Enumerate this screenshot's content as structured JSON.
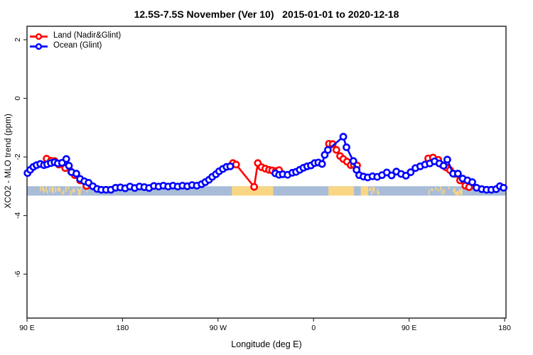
{
  "legend": [
    {
      "label": "Land (Nadir&Glint)",
      "color": "#ff0000"
    },
    {
      "label": "Ocean (Glint)",
      "color": "#0000ff"
    }
  ],
  "chart_data": {
    "type": "line",
    "title": "12.5S-7.5S November (Ver 10)   2015-01-01 to 2020-12-18",
    "xlabel": "Longitude (deg E)",
    "ylabel": "XCO2 - MLO trend (ppm)",
    "xlim": [
      90,
      541.3
    ],
    "ylim": [
      -7.5,
      2.46
    ],
    "grid": false,
    "legend_position": "top-left",
    "x_ticks": [
      {
        "value": 90,
        "label": "90 E"
      },
      {
        "value": 180,
        "label": "180"
      },
      {
        "value": 270,
        "label": "90 W"
      },
      {
        "value": 360,
        "label": "0"
      },
      {
        "value": 450,
        "label": "90 E"
      },
      {
        "value": 540,
        "label": "180"
      }
    ],
    "y_ticks": [
      {
        "value": 2,
        "label": "2"
      },
      {
        "value": 0,
        "label": "0"
      },
      {
        "value": -2,
        "label": "-2"
      },
      {
        "value": -4,
        "label": "-4"
      },
      {
        "value": -6,
        "label": "-6"
      }
    ],
    "map_band": {
      "y_top": -3.0,
      "y_bottom": -3.32,
      "ocean_color": "#a8bcd8",
      "land_color": "#f9d684",
      "land_patches": [
        {
          "from": 102,
          "to": 146,
          "style": "speckle"
        },
        {
          "from": 283,
          "to": 322,
          "style": "solid"
        },
        {
          "from": 374,
          "to": 398,
          "style": "solid"
        },
        {
          "from": 404.5,
          "to": 411.5,
          "style": "solid"
        },
        {
          "from": 412,
          "to": 424,
          "style": "speckle"
        },
        {
          "from": 466,
          "to": 500,
          "style": "speckle"
        }
      ]
    },
    "series": [
      {
        "name": "Land (Nadir&Glint)",
        "color": "#ff0000",
        "segments": [
          [
            [
              108.5,
              -2.06
            ],
            [
              112.5,
              -2.13
            ],
            [
              116,
              -2.14
            ],
            [
              120,
              -2.26
            ],
            [
              126,
              -2.38
            ],
            [
              131.5,
              -2.5
            ],
            [
              135,
              -2.62
            ],
            [
              140,
              -2.8
            ],
            [
              146,
              -2.99
            ]
          ],
          [
            [
              284,
              -2.21
            ],
            [
              287,
              -2.26
            ],
            [
              304,
              -3.02
            ],
            [
              307.5,
              -2.21
            ],
            [
              311,
              -2.35
            ],
            [
              314.5,
              -2.4
            ],
            [
              318,
              -2.44
            ],
            [
              321,
              -2.46
            ],
            [
              324.5,
              -2.48
            ],
            [
              327.5,
              -2.45
            ]
          ],
          [
            [
              374.5,
              -1.55
            ],
            [
              378,
              -1.56
            ],
            [
              381.5,
              -1.76
            ],
            [
              385,
              -1.97
            ],
            [
              388,
              -2.07
            ],
            [
              391.5,
              -2.16
            ],
            [
              395,
              -2.28
            ],
            [
              398,
              -2.27
            ],
            [
              401,
              -2.29
            ]
          ],
          [
            [
              468,
              -2.05
            ],
            [
              472.5,
              -2.02
            ],
            [
              477.5,
              -2.1
            ],
            [
              481.5,
              -2.28
            ],
            [
              485,
              -2.36
            ],
            [
              488.5,
              -2.45
            ],
            [
              493,
              -2.58
            ],
            [
              498,
              -2.8
            ],
            [
              503,
              -2.98
            ],
            [
              506.5,
              -3.03
            ]
          ]
        ]
      },
      {
        "name": "Ocean (Glint)",
        "color": "#0000ff",
        "segments": [
          [
            [
              90.5,
              -2.55
            ],
            [
              93,
              -2.44
            ],
            [
              96,
              -2.34
            ],
            [
              99,
              -2.28
            ],
            [
              102.5,
              -2.24
            ],
            [
              106,
              -2.28
            ],
            [
              109,
              -2.25
            ],
            [
              112.5,
              -2.21
            ],
            [
              116,
              -2.18
            ],
            [
              119,
              -2.22
            ],
            [
              123,
              -2.2
            ],
            [
              127,
              -2.07
            ],
            [
              129.5,
              -2.3
            ],
            [
              132,
              -2.52
            ],
            [
              136.5,
              -2.57
            ],
            [
              140,
              -2.75
            ],
            [
              144,
              -2.83
            ],
            [
              148,
              -2.88
            ],
            [
              152,
              -3.0
            ],
            [
              156,
              -3.09
            ],
            [
              160,
              -3.12
            ],
            [
              164.5,
              -3.12
            ],
            [
              169,
              -3.12
            ],
            [
              173.5,
              -3.05
            ],
            [
              178,
              -3.04
            ],
            [
              182.5,
              -3.07
            ],
            [
              187,
              -3.01
            ],
            [
              191.5,
              -3.06
            ],
            [
              196,
              -3.01
            ],
            [
              200.5,
              -3.03
            ],
            [
              205,
              -3.06
            ],
            [
              209.5,
              -2.99
            ],
            [
              214,
              -3.01
            ],
            [
              218.5,
              -2.98
            ],
            [
              223,
              -3.01
            ],
            [
              227.5,
              -2.98
            ],
            [
              232,
              -3.01
            ],
            [
              236.5,
              -2.98
            ],
            [
              241,
              -3.0
            ],
            [
              245.5,
              -2.96
            ],
            [
              250,
              -2.98
            ],
            [
              254.5,
              -2.93
            ],
            [
              258,
              -2.86
            ],
            [
              261.5,
              -2.78
            ],
            [
              264.5,
              -2.68
            ],
            [
              268,
              -2.59
            ],
            [
              271,
              -2.49
            ],
            [
              274.5,
              -2.41
            ],
            [
              278,
              -2.34
            ],
            [
              281.5,
              -2.32
            ]
          ],
          [
            [
              324,
              -2.56
            ],
            [
              327.5,
              -2.61
            ],
            [
              331,
              -2.59
            ],
            [
              335.5,
              -2.61
            ],
            [
              340,
              -2.54
            ],
            [
              343.5,
              -2.51
            ],
            [
              347,
              -2.44
            ],
            [
              350.5,
              -2.37
            ],
            [
              354,
              -2.32
            ],
            [
              357.5,
              -2.29
            ],
            [
              361,
              -2.21
            ],
            [
              364.5,
              -2.19
            ],
            [
              368,
              -2.24
            ],
            [
              370.5,
              -1.93
            ],
            [
              373.5,
              -1.76
            ],
            [
              388,
              -1.31
            ],
            [
              391,
              -1.67
            ],
            [
              397.5,
              -2.14
            ],
            [
              400.5,
              -2.44
            ],
            [
              403,
              -2.62
            ],
            [
              407,
              -2.67
            ],
            [
              411,
              -2.7
            ],
            [
              415.5,
              -2.66
            ],
            [
              420,
              -2.68
            ],
            [
              424.5,
              -2.62
            ],
            [
              429,
              -2.53
            ],
            [
              433.5,
              -2.63
            ],
            [
              438,
              -2.5
            ],
            [
              442.5,
              -2.58
            ],
            [
              447,
              -2.64
            ],
            [
              451.5,
              -2.52
            ],
            [
              456,
              -2.38
            ],
            [
              460.5,
              -2.32
            ],
            [
              465,
              -2.26
            ],
            [
              469.5,
              -2.22
            ],
            [
              474,
              -2.15
            ],
            [
              478.5,
              -2.22
            ],
            [
              482.5,
              -2.3
            ],
            [
              486,
              -2.09
            ],
            [
              491.5,
              -2.57
            ],
            [
              496,
              -2.57
            ],
            [
              500.5,
              -2.74
            ],
            [
              505,
              -2.8
            ],
            [
              509.5,
              -2.86
            ],
            [
              513.5,
              -3.05
            ],
            [
              518.5,
              -3.1
            ],
            [
              523,
              -3.12
            ],
            [
              527.5,
              -3.12
            ],
            [
              532,
              -3.1
            ],
            [
              535.5,
              -3.0
            ],
            [
              539,
              -3.05
            ]
          ]
        ]
      }
    ]
  }
}
